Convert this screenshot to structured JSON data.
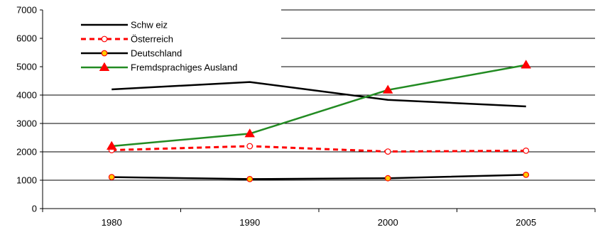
{
  "chart_data": {
    "type": "line",
    "categories": [
      "1980",
      "1990",
      "2000",
      "2005"
    ],
    "ylim": [
      0,
      7000
    ],
    "yticks": [
      0,
      1000,
      2000,
      3000,
      4000,
      5000,
      6000,
      7000
    ],
    "grid": "horizontal",
    "legend_position": "top-left",
    "series": [
      {
        "name": "Schw eiz",
        "values": [
          4200,
          4460,
          3830,
          3600
        ],
        "color": "#000000",
        "style": "solid",
        "marker": "none"
      },
      {
        "name": "Österreich",
        "values": [
          2060,
          2200,
          2010,
          2040
        ],
        "color": "#ff0000",
        "style": "dashed",
        "marker": "open-circle"
      },
      {
        "name": "Deutschland",
        "values": [
          1110,
          1040,
          1070,
          1190
        ],
        "color": "#000000",
        "style": "solid",
        "marker": "yellow-circle"
      },
      {
        "name": "Fremdsprachiges Ausland",
        "values": [
          2200,
          2640,
          4180,
          5060
        ],
        "color": "#228B22",
        "style": "solid",
        "marker": "red-triangle"
      }
    ]
  }
}
